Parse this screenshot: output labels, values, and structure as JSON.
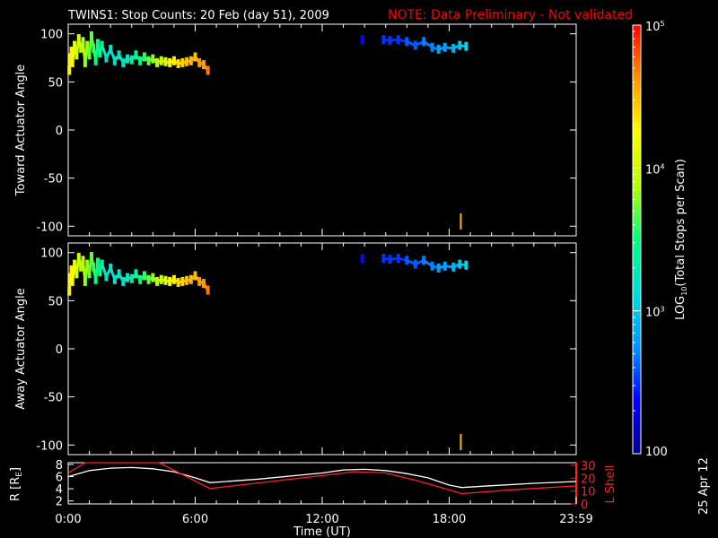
{
  "header": {
    "title": "TWINS1: Stop Counts: 20 Feb (day  51), 2009",
    "note": "NOTE: Data Preliminary - Not validated"
  },
  "side_date": "25 Apr 12",
  "colors": {
    "background": "#000000",
    "axes": "#ffffff",
    "note": "#ff0000",
    "lshell": "#ff2020"
  },
  "chart_data": [
    {
      "id": "toward",
      "type": "scatter",
      "ylabel": "Toward Actuator Angle",
      "ylim": [
        -110,
        110
      ],
      "ytick_values": [
        -100,
        -50,
        0,
        50,
        100
      ],
      "ytick_labels": [
        "-100",
        "-50",
        "0",
        "50",
        "100"
      ],
      "xlim": [
        0,
        24
      ],
      "xlabel": "",
      "color_scale": "log10 counts 100 - 100000",
      "points": [
        [
          0.05,
          62,
          4.3
        ],
        [
          0.1,
          75,
          4.3
        ],
        [
          0.15,
          82,
          4.3
        ],
        [
          0.2,
          70,
          4.2
        ],
        [
          0.3,
          88,
          4.1
        ],
        [
          0.4,
          78,
          4.0
        ],
        [
          0.5,
          95,
          4.0
        ],
        [
          0.6,
          85,
          3.9
        ],
        [
          0.7,
          92,
          3.9
        ],
        [
          0.8,
          70,
          3.8
        ],
        [
          0.9,
          88,
          3.8
        ],
        [
          1.0,
          78,
          3.7
        ],
        [
          1.1,
          98,
          3.7
        ],
        [
          1.2,
          85,
          3.6
        ],
        [
          1.3,
          72,
          3.5
        ],
        [
          1.4,
          90,
          3.5
        ],
        [
          1.5,
          80,
          3.4
        ],
        [
          1.6,
          88,
          3.3
        ],
        [
          1.8,
          75,
          3.2
        ],
        [
          2.0,
          84,
          3.2
        ],
        [
          2.2,
          72,
          3.2
        ],
        [
          2.4,
          78,
          3.2
        ],
        [
          2.6,
          70,
          3.2
        ],
        [
          2.8,
          74,
          3.3
        ],
        [
          3.0,
          73,
          3.3
        ],
        [
          3.2,
          78,
          3.4
        ],
        [
          3.4,
          72,
          3.5
        ],
        [
          3.6,
          76,
          3.6
        ],
        [
          3.8,
          72,
          3.7
        ],
        [
          4.0,
          74,
          3.8
        ],
        [
          4.2,
          70,
          3.9
        ],
        [
          4.4,
          72,
          4.0
        ],
        [
          4.6,
          71,
          4.1
        ],
        [
          4.8,
          70,
          4.2
        ],
        [
          5.0,
          72,
          4.3
        ],
        [
          5.2,
          69,
          4.4
        ],
        [
          5.4,
          70,
          4.4
        ],
        [
          5.6,
          71,
          4.5
        ],
        [
          5.8,
          72,
          4.5
        ],
        [
          6.0,
          76,
          4.5
        ],
        [
          6.2,
          70,
          4.6
        ],
        [
          6.4,
          68,
          4.6
        ],
        [
          6.6,
          62,
          4.7
        ],
        [
          13.9,
          94,
          2.4
        ],
        [
          14.9,
          94,
          2.5
        ],
        [
          15.2,
          93,
          2.5
        ],
        [
          15.6,
          94,
          2.5
        ],
        [
          16.0,
          92,
          2.6
        ],
        [
          16.4,
          88,
          2.6
        ],
        [
          16.8,
          92,
          2.7
        ],
        [
          17.2,
          86,
          2.7
        ],
        [
          17.5,
          84,
          2.8
        ],
        [
          17.8,
          86,
          2.8
        ],
        [
          18.2,
          85,
          2.9
        ],
        [
          18.5,
          88,
          3.0
        ],
        [
          18.8,
          87,
          3.1
        ],
        [
          18.55,
          -95,
          4.5
        ]
      ]
    },
    {
      "id": "away",
      "type": "scatter",
      "ylabel": "Away Actuator Angle",
      "ylim": [
        -110,
        110
      ],
      "ytick_values": [
        -100,
        -50,
        0,
        50,
        100
      ],
      "ytick_labels": [
        "-100",
        "-50",
        "0",
        "50",
        "100"
      ],
      "xlim": [
        0,
        24
      ],
      "xlabel": "",
      "color_scale": "log10 counts 100 - 100000",
      "points": [
        [
          0.05,
          60,
          4.3
        ],
        [
          0.1,
          74,
          4.3
        ],
        [
          0.15,
          82,
          4.3
        ],
        [
          0.2,
          70,
          4.2
        ],
        [
          0.3,
          88,
          4.1
        ],
        [
          0.4,
          78,
          4.0
        ],
        [
          0.5,
          95,
          4.0
        ],
        [
          0.6,
          85,
          3.9
        ],
        [
          0.7,
          92,
          3.9
        ],
        [
          0.8,
          70,
          3.8
        ],
        [
          0.9,
          88,
          3.8
        ],
        [
          1.0,
          78,
          3.7
        ],
        [
          1.1,
          96,
          3.7
        ],
        [
          1.2,
          85,
          3.6
        ],
        [
          1.3,
          72,
          3.5
        ],
        [
          1.4,
          90,
          3.5
        ],
        [
          1.5,
          80,
          3.4
        ],
        [
          1.6,
          88,
          3.3
        ],
        [
          1.8,
          75,
          3.2
        ],
        [
          2.0,
          84,
          3.2
        ],
        [
          2.2,
          72,
          3.2
        ],
        [
          2.4,
          78,
          3.2
        ],
        [
          2.6,
          70,
          3.2
        ],
        [
          2.8,
          74,
          3.3
        ],
        [
          3.0,
          73,
          3.3
        ],
        [
          3.2,
          78,
          3.4
        ],
        [
          3.4,
          72,
          3.5
        ],
        [
          3.6,
          76,
          3.6
        ],
        [
          3.8,
          72,
          3.7
        ],
        [
          4.0,
          74,
          3.8
        ],
        [
          4.2,
          70,
          3.9
        ],
        [
          4.4,
          72,
          4.0
        ],
        [
          4.6,
          71,
          4.1
        ],
        [
          4.8,
          70,
          4.2
        ],
        [
          5.0,
          72,
          4.3
        ],
        [
          5.2,
          69,
          4.4
        ],
        [
          5.4,
          70,
          4.4
        ],
        [
          5.6,
          71,
          4.5
        ],
        [
          5.8,
          72,
          4.5
        ],
        [
          6.0,
          76,
          4.5
        ],
        [
          6.2,
          70,
          4.6
        ],
        [
          6.4,
          68,
          4.6
        ],
        [
          6.6,
          61,
          4.7
        ],
        [
          13.9,
          94,
          2.4
        ],
        [
          14.9,
          94,
          2.5
        ],
        [
          15.2,
          93,
          2.5
        ],
        [
          15.6,
          94,
          2.5
        ],
        [
          16.0,
          92,
          2.6
        ],
        [
          16.4,
          88,
          2.6
        ],
        [
          16.8,
          92,
          2.7
        ],
        [
          17.2,
          86,
          2.7
        ],
        [
          17.5,
          84,
          2.8
        ],
        [
          17.8,
          86,
          2.8
        ],
        [
          18.2,
          85,
          2.9
        ],
        [
          18.5,
          88,
          3.0
        ],
        [
          18.8,
          87,
          3.1
        ],
        [
          18.55,
          -97,
          4.5
        ]
      ]
    },
    {
      "id": "ephemeris",
      "type": "line",
      "ylabel": "R [R",
      "ylabel_sub": "E",
      "ylabel_end": "]",
      "ylim": [
        1.5,
        8.3
      ],
      "ytick_values": [
        2,
        4,
        6,
        8
      ],
      "ytick_labels": [
        "2",
        "4",
        "6",
        "8"
      ],
      "y2label": "L Shell",
      "y2lim": [
        0,
        32
      ],
      "y2tick_values": [
        0,
        10,
        20,
        30
      ],
      "y2tick_labels": [
        "0",
        "10",
        "20",
        "30"
      ],
      "xlim": [
        0,
        24
      ],
      "xlabel": "Time (UT)",
      "xtick_values": [
        0,
        6,
        12,
        18,
        24
      ],
      "xtick_labels": [
        "0:00",
        "6:00",
        "12:00",
        "18:00",
        "23:59"
      ],
      "series": [
        {
          "axis": "left",
          "color": "#ffffff",
          "x": [
            0,
            1,
            2,
            3,
            4,
            5,
            6,
            6.7,
            9,
            12,
            13,
            14,
            15,
            16,
            17,
            18,
            18.6,
            20,
            22,
            24
          ],
          "y": [
            6.0,
            7.0,
            7.4,
            7.5,
            7.3,
            6.8,
            5.8,
            5.0,
            5.6,
            6.6,
            7.1,
            7.2,
            7.0,
            6.5,
            5.8,
            4.6,
            4.2,
            4.5,
            4.9,
            5.2
          ]
        },
        {
          "axis": "right",
          "color": "#ff2020",
          "x": [
            0,
            0.8,
            4.3,
            6.7,
            12,
            13.5,
            15,
            16.5,
            18.6,
            21,
            24
          ],
          "y": [
            24,
            32,
            32,
            12,
            22,
            25,
            24,
            18,
            8,
            11,
            14
          ]
        }
      ]
    }
  ],
  "colorbar": {
    "label": "LOG",
    "label_sub": "10",
    "label_end": "(Total Stops per Scan)",
    "min_label": "100",
    "tick_labels": [
      "10",
      "10",
      "10"
    ],
    "tick_exponents": [
      "3",
      "4",
      "5"
    ],
    "colors": [
      "#00008b",
      "#0000ff",
      "#0096ff",
      "#00dcdc",
      "#00ff80",
      "#b4ff00",
      "#ffff00",
      "#ff9600",
      "#ff0000"
    ]
  }
}
